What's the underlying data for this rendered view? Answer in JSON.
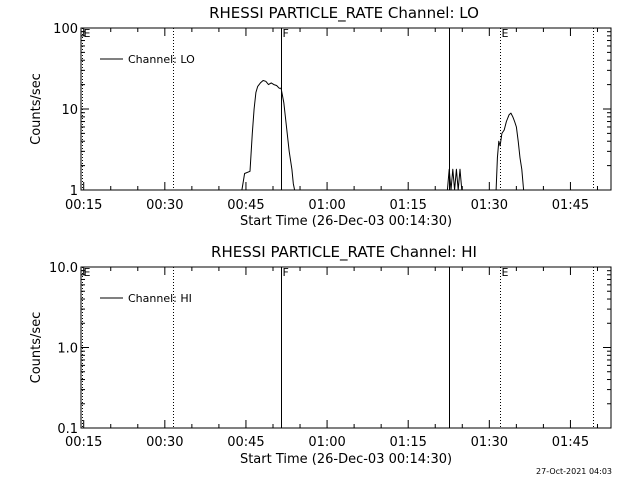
{
  "footer_stamp": "27-Oct-2021 04:03",
  "chart_data": [
    {
      "type": "line",
      "title": "RHESSI PARTICLE_RATE Channel: LO",
      "xlabel": "Start Time (26-Dec-03 00:14:30)",
      "ylabel": "Counts/sec",
      "y_scale": "log",
      "ylim": [
        1,
        100
      ],
      "y_ticks": [
        "1",
        "10",
        "100"
      ],
      "xlim": [
        "00:14:30",
        "01:52:30"
      ],
      "x_ticks": [
        "00:15",
        "00:30",
        "00:45",
        "01:00",
        "01:15",
        "01:30",
        "01:45"
      ],
      "legend": {
        "position": "top-left",
        "label": "Channel: LO"
      },
      "series": [
        {
          "name": "Channel: LO",
          "segments": [
            [
              [
                "00:44:15",
                1
              ],
              [
                "00:44:45",
                1.6
              ],
              [
                "00:45:45",
                1.7
              ],
              [
                "00:46:10",
                5
              ],
              [
                "00:46:30",
                10
              ],
              [
                "00:46:50",
                16
              ],
              [
                "00:47:10",
                19
              ],
              [
                "00:47:40",
                21
              ],
              [
                "00:48:10",
                22.5
              ],
              [
                "00:48:40",
                22
              ],
              [
                "00:49:10",
                20
              ],
              [
                "00:49:40",
                21
              ],
              [
                "00:50:10",
                20
              ],
              [
                "00:50:40",
                19.5
              ],
              [
                "00:51:10",
                18
              ],
              [
                "00:51:30",
                18
              ],
              [
                "00:52:00",
                12
              ],
              [
                "00:52:30",
                6
              ],
              [
                "00:53:00",
                3
              ],
              [
                "00:53:30",
                1.8
              ],
              [
                "00:53:45",
                1.2
              ],
              [
                "00:54:00",
                1
              ]
            ],
            [
              [
                "01:22:15",
                1
              ],
              [
                "01:22:35",
                1.8
              ],
              [
                "01:22:55",
                1
              ],
              [
                "01:23:15",
                1.8
              ],
              [
                "01:23:35",
                1
              ],
              [
                "01:23:55",
                1.8
              ],
              [
                "01:24:15",
                1
              ],
              [
                "01:24:35",
                1.8
              ],
              [
                "01:24:55",
                1
              ]
            ],
            [
              [
                "01:31:15",
                1
              ],
              [
                "01:31:30",
                2.5
              ],
              [
                "01:31:45",
                4
              ],
              [
                "01:32:00",
                3.5
              ],
              [
                "01:32:20",
                5
              ],
              [
                "01:32:45",
                5.5
              ],
              [
                "01:33:10",
                7
              ],
              [
                "01:33:40",
                8.5
              ],
              [
                "01:34:00",
                8.9
              ],
              [
                "01:34:20",
                8
              ],
              [
                "01:34:40",
                7
              ],
              [
                "01:35:00",
                6
              ],
              [
                "01:35:20",
                4
              ],
              [
                "01:35:40",
                2.5
              ],
              [
                "01:36:00",
                1.8
              ],
              [
                "01:36:20",
                1
              ]
            ]
          ]
        }
      ],
      "markers": [
        {
          "time": "00:14:45",
          "label": "E",
          "style": "dotted"
        },
        {
          "time": "00:31:30",
          "label": "",
          "style": "dotted"
        },
        {
          "time": "00:51:30",
          "label": "F",
          "style": "solid"
        },
        {
          "time": "01:22:30",
          "label": "",
          "style": "solid"
        },
        {
          "time": "01:32:00",
          "label": "E",
          "style": "dotted"
        },
        {
          "time": "01:49:15",
          "label": "",
          "style": "dotted"
        }
      ]
    },
    {
      "type": "line",
      "title": "RHESSI PARTICLE_RATE Channel: HI",
      "xlabel": "Start Time (26-Dec-03 00:14:30)",
      "ylabel": "Counts/sec",
      "y_scale": "log",
      "ylim": [
        0.1,
        10
      ],
      "y_ticks": [
        "0.1",
        "1.0",
        "10.0"
      ],
      "xlim": [
        "00:14:30",
        "01:52:30"
      ],
      "x_ticks": [
        "00:15",
        "00:30",
        "00:45",
        "01:00",
        "01:15",
        "01:30",
        "01:45"
      ],
      "legend": {
        "position": "top-left",
        "label": "Channel: HI"
      },
      "series": [
        {
          "name": "Channel: HI",
          "segments": []
        }
      ],
      "markers": [
        {
          "time": "00:14:45",
          "label": "E",
          "style": "dotted"
        },
        {
          "time": "00:31:30",
          "label": "",
          "style": "dotted"
        },
        {
          "time": "00:51:30",
          "label": "F",
          "style": "solid"
        },
        {
          "time": "01:22:30",
          "label": "",
          "style": "solid"
        },
        {
          "time": "01:32:00",
          "label": "E",
          "style": "dotted"
        },
        {
          "time": "01:49:15",
          "label": "",
          "style": "dotted"
        }
      ]
    }
  ]
}
